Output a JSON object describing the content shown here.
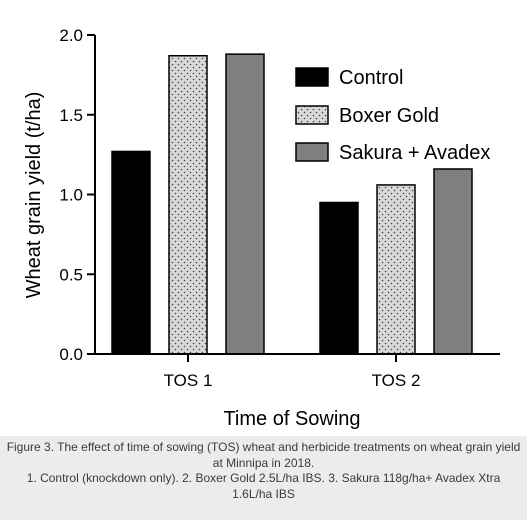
{
  "chart_data": {
    "type": "bar",
    "categories": [
      "TOS 1",
      "TOS 2"
    ],
    "series": [
      {
        "name": "Control",
        "values": [
          1.27,
          0.95
        ]
      },
      {
        "name": "Boxer Gold",
        "values": [
          1.87,
          1.06
        ]
      },
      {
        "name": "Sakura + Avadex",
        "values": [
          1.88,
          1.16
        ]
      }
    ],
    "ylabel": "Wheat grain yield (t/ha)",
    "xlabel": "Time of Sowing",
    "ylim": [
      0,
      2.0
    ],
    "yticks": [
      "0.0",
      "0.5",
      "1.0",
      "1.5",
      "2.0"
    ],
    "grid": false,
    "legend_position": "top-right",
    "series_styles": [
      {
        "fill": "#000000",
        "pattern": "solid"
      },
      {
        "fill": "#d8d8d8",
        "pattern": "dots"
      },
      {
        "fill": "#7f7f7f",
        "pattern": "solid"
      }
    ]
  },
  "caption": {
    "line1": "Figure 3. The effect of time of sowing (TOS) wheat and herbicide treatments on wheat grain yield at Minnipa in 2018.",
    "line2": "1. Control (knockdown only). 2. Boxer Gold 2.5L/ha IBS. 3. Sakura 118g/ha+ Avadex Xtra 1.6L/ha IBS"
  }
}
